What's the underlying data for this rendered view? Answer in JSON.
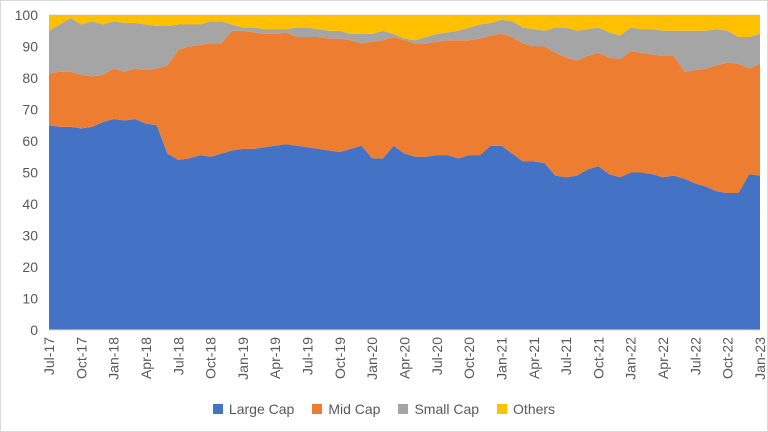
{
  "chart_data": {
    "type": "area",
    "stacked": true,
    "title": "",
    "xlabel": "",
    "ylabel": "",
    "ylim": [
      0,
      100
    ],
    "yticks": [
      0,
      10,
      20,
      30,
      40,
      50,
      60,
      70,
      80,
      90,
      100
    ],
    "grid": true,
    "legend_position": "bottom",
    "categories": [
      "Jul-17",
      "Aug-17",
      "Sep-17",
      "Oct-17",
      "Nov-17",
      "Dec-17",
      "Jan-18",
      "Feb-18",
      "Mar-18",
      "Apr-18",
      "May-18",
      "Jun-18",
      "Jul-18",
      "Aug-18",
      "Sep-18",
      "Oct-18",
      "Nov-18",
      "Dec-18",
      "Jan-19",
      "Feb-19",
      "Mar-19",
      "Apr-19",
      "May-19",
      "Jun-19",
      "Jul-19",
      "Aug-19",
      "Sep-19",
      "Oct-19",
      "Nov-19",
      "Dec-19",
      "Jan-20",
      "Feb-20",
      "Mar-20",
      "Apr-20",
      "May-20",
      "Jun-20",
      "Jul-20",
      "Aug-20",
      "Sep-20",
      "Oct-20",
      "Nov-20",
      "Dec-20",
      "Jan-21",
      "Feb-21",
      "Mar-21",
      "Apr-21",
      "May-21",
      "Jun-21",
      "Jul-21",
      "Aug-21",
      "Sep-21",
      "Oct-21",
      "Nov-21",
      "Dec-21",
      "Jan-22",
      "Feb-22",
      "Mar-22",
      "Apr-22",
      "May-22",
      "Jun-22",
      "Jul-22",
      "Aug-22",
      "Sep-22",
      "Oct-22",
      "Nov-22",
      "Dec-22",
      "Jan-23"
    ],
    "xtick_labels": [
      "Jul-17",
      "Oct-17",
      "Jan-18",
      "Apr-18",
      "Jul-18",
      "Oct-18",
      "Jan-19",
      "Apr-19",
      "Jul-19",
      "Oct-19",
      "Jan-20",
      "Apr-20",
      "Jul-20",
      "Oct-20",
      "Jan-21",
      "Apr-21",
      "Jul-21",
      "Oct-21",
      "Jan-22",
      "Apr-22",
      "Jul-22",
      "Oct-22",
      "Jan-23"
    ],
    "series": [
      {
        "name": "Large Cap",
        "color": "#4472C4",
        "values": [
          65,
          64.5,
          64.5,
          64,
          64.5,
          66,
          67,
          66.5,
          67,
          65.5,
          65,
          56,
          54,
          54.5,
          55.5,
          55,
          56,
          57,
          57.5,
          57.5,
          58,
          58.5,
          59,
          58.5,
          58,
          57.5,
          57,
          56.5,
          57.5,
          58.5,
          54.5,
          54.5,
          58.5,
          56,
          55,
          55,
          55.5,
          55.5,
          54.5,
          55.5,
          55.5,
          58.5,
          58.5,
          56,
          53.5,
          53.5,
          53,
          49,
          48.5,
          49,
          51,
          52,
          49.5,
          48.5,
          50,
          50,
          49.5,
          48.5,
          49,
          48,
          46.5,
          45.5,
          44,
          43.5,
          43.5,
          49.5,
          49
        ]
      },
      {
        "name": "Mid Cap",
        "color": "#ED7D31",
        "values": [
          16.5,
          17.5,
          17.5,
          17,
          16,
          15,
          16,
          15.5,
          16,
          17,
          18,
          28,
          35,
          35.5,
          35,
          36,
          35,
          38,
          37.5,
          37,
          36,
          35.5,
          35.5,
          34.5,
          35,
          35.5,
          35.5,
          36,
          34.5,
          32.5,
          37,
          37.5,
          34.5,
          36,
          36,
          36,
          36,
          36.5,
          37.5,
          36.5,
          37,
          35,
          35.5,
          37,
          37.5,
          36.5,
          37,
          39,
          38,
          36.5,
          36,
          36,
          37,
          37.5,
          38.5,
          38,
          38,
          38.5,
          38,
          34,
          36,
          37.5,
          40,
          41.5,
          41,
          33.5,
          35.5
        ]
      },
      {
        "name": "Small Cap",
        "color": "#A5A5A5",
        "values": [
          13.5,
          15,
          17,
          16,
          17.5,
          16,
          15,
          15.5,
          14.5,
          14.5,
          13.5,
          12.5,
          8,
          7,
          6.5,
          7,
          7,
          2,
          1,
          1.5,
          1.5,
          1.5,
          1,
          3,
          3,
          2.5,
          2.5,
          2.5,
          2,
          3,
          2.5,
          3,
          1,
          0.5,
          1,
          2,
          2.5,
          2.5,
          3,
          4,
          4.5,
          4,
          4.5,
          5,
          5,
          5.5,
          5,
          8,
          9.5,
          9.5,
          8.5,
          8,
          8,
          7.5,
          7.5,
          7.5,
          8,
          8,
          8,
          13,
          12.5,
          12,
          11.5,
          10,
          8.5,
          10,
          9.5
        ]
      },
      {
        "name": "Others",
        "color": "#FFC000",
        "values": [
          5,
          3,
          1,
          3,
          2,
          3,
          2,
          2.5,
          2.5,
          3,
          3.5,
          3.5,
          3,
          3,
          3,
          2,
          2,
          3,
          4,
          4,
          4.5,
          4.5,
          4.5,
          4,
          4,
          4.5,
          5,
          5,
          6,
          6,
          6,
          5,
          6,
          7.5,
          8,
          7,
          6,
          5.5,
          5,
          4,
          3,
          2.5,
          1.5,
          2,
          4,
          4.5,
          5,
          4,
          4,
          5,
          4.5,
          4,
          5.5,
          6.5,
          4,
          4.5,
          4.5,
          5,
          5,
          5,
          5,
          5,
          4.5,
          5,
          7,
          7,
          6
        ]
      }
    ]
  }
}
